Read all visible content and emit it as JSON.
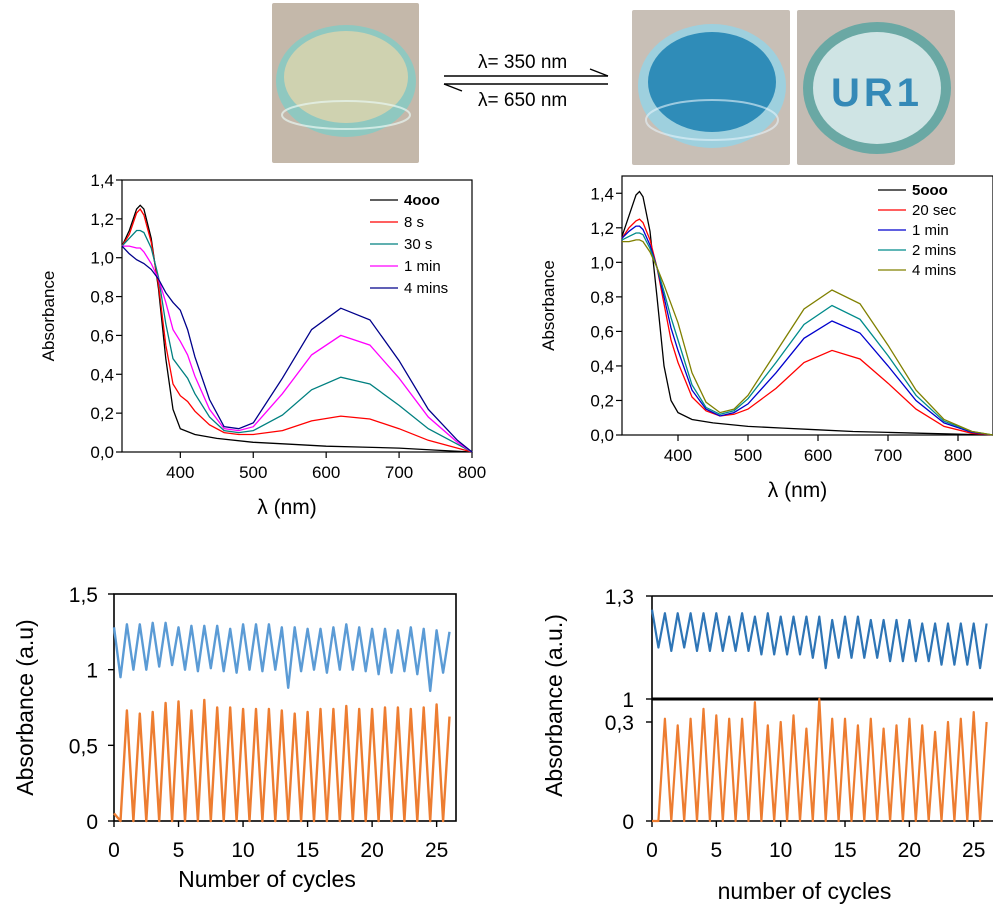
{
  "photos": [
    {
      "name": "colorless-solution-dish",
      "colors": {
        "background": "#c4b8aa",
        "liquid": "#cfd2b0",
        "rim": "#8fc8c0"
      }
    },
    {
      "name": "blue-solution-dish",
      "colors": {
        "background": "#c8bfb6",
        "liquid": "#2f8cb8",
        "rim": "#9ed0de"
      }
    },
    {
      "name": "ur1-pattern-dish",
      "colors": {
        "background": "#c3bbb3",
        "liquid": "#cfe4e4",
        "rim": "#6aa8a4"
      }
    }
  ],
  "pattern_text": "UR1",
  "photoswitch": {
    "forward_label": "λ= 350 nm",
    "backward_label": "λ= 650 nm"
  },
  "chart_data": [
    {
      "type": "line",
      "xlabel": "λ (nm)",
      "ylabel": "Absorbance",
      "xlim": [
        320,
        800
      ],
      "ylim": [
        0.0,
        1.4
      ],
      "xticks": [
        400,
        500,
        600,
        700,
        800
      ],
      "yticks": [
        "0,0",
        "0,2",
        "0,4",
        "0,6",
        "0,8",
        "1,0",
        "1,2",
        "1,4"
      ],
      "legend_position": "top-right",
      "series": [
        {
          "name": "4ooo",
          "color": "#000000",
          "bold": true,
          "x": [
            320,
            330,
            340,
            345,
            350,
            360,
            370,
            380,
            390,
            400,
            420,
            450,
            500,
            550,
            600,
            650,
            700,
            750,
            800
          ],
          "y": [
            1.06,
            1.14,
            1.25,
            1.27,
            1.25,
            1.1,
            0.84,
            0.48,
            0.22,
            0.12,
            0.09,
            0.07,
            0.05,
            0.04,
            0.03,
            0.025,
            0.02,
            0.01,
            0.0
          ]
        },
        {
          "name": "8 s",
          "color": "#ff0000",
          "x": [
            320,
            330,
            340,
            345,
            350,
            360,
            370,
            380,
            390,
            400,
            410,
            420,
            440,
            460,
            480,
            500,
            540,
            580,
            620,
            660,
            700,
            740,
            780,
            800
          ],
          "y": [
            1.06,
            1.12,
            1.23,
            1.25,
            1.22,
            1.08,
            0.86,
            0.55,
            0.35,
            0.29,
            0.26,
            0.21,
            0.14,
            0.1,
            0.09,
            0.09,
            0.11,
            0.16,
            0.185,
            0.17,
            0.12,
            0.06,
            0.02,
            0.0
          ]
        },
        {
          "name": "30 s",
          "color": "#008080",
          "x": [
            320,
            330,
            340,
            345,
            350,
            360,
            370,
            380,
            390,
            400,
            410,
            420,
            440,
            460,
            480,
            500,
            540,
            580,
            620,
            660,
            700,
            740,
            780,
            800
          ],
          "y": [
            1.06,
            1.1,
            1.14,
            1.14,
            1.13,
            1.05,
            0.9,
            0.66,
            0.48,
            0.43,
            0.38,
            0.3,
            0.18,
            0.11,
            0.1,
            0.11,
            0.19,
            0.32,
            0.385,
            0.35,
            0.24,
            0.12,
            0.04,
            0.0
          ]
        },
        {
          "name": "1 min",
          "color": "#ff00ff",
          "x": [
            320,
            330,
            340,
            345,
            350,
            360,
            370,
            380,
            390,
            400,
            410,
            420,
            440,
            460,
            480,
            500,
            540,
            580,
            620,
            660,
            700,
            740,
            780,
            800
          ],
          "y": [
            1.06,
            1.06,
            1.05,
            1.05,
            1.03,
            0.97,
            0.89,
            0.77,
            0.63,
            0.57,
            0.5,
            0.39,
            0.22,
            0.12,
            0.11,
            0.13,
            0.3,
            0.5,
            0.6,
            0.55,
            0.38,
            0.18,
            0.05,
            0.0
          ]
        },
        {
          "name": "4 mins",
          "color": "#00008b",
          "x": [
            320,
            330,
            340,
            350,
            360,
            370,
            380,
            390,
            400,
            410,
            420,
            440,
            460,
            480,
            500,
            540,
            580,
            620,
            660,
            700,
            740,
            780,
            800
          ],
          "y": [
            1.06,
            1.02,
            0.99,
            0.97,
            0.94,
            0.89,
            0.82,
            0.77,
            0.73,
            0.63,
            0.49,
            0.27,
            0.13,
            0.12,
            0.15,
            0.38,
            0.63,
            0.74,
            0.68,
            0.47,
            0.22,
            0.06,
            0.0
          ]
        }
      ]
    },
    {
      "type": "line",
      "xlabel": "λ (nm)",
      "ylabel": "Absorbance",
      "xlim": [
        320,
        850
      ],
      "ylim": [
        0.0,
        1.5
      ],
      "xticks": [
        400,
        500,
        600,
        700,
        800
      ],
      "yticks": [
        "0,0",
        "0,2",
        "0,4",
        "0,6",
        "0,8",
        "1,0",
        "1,2",
        "1,4"
      ],
      "legend_position": "top-right",
      "series": [
        {
          "name": "5ooo",
          "color": "#000000",
          "bold": true,
          "x": [
            320,
            330,
            340,
            345,
            350,
            360,
            370,
            380,
            390,
            400,
            420,
            450,
            500,
            550,
            600,
            650,
            700,
            750,
            800,
            850
          ],
          "y": [
            1.15,
            1.27,
            1.39,
            1.41,
            1.38,
            1.18,
            0.8,
            0.4,
            0.2,
            0.13,
            0.09,
            0.07,
            0.05,
            0.04,
            0.03,
            0.02,
            0.015,
            0.01,
            0.005,
            0.0
          ]
        },
        {
          "name": "20 sec",
          "color": "#ff0000",
          "x": [
            320,
            330,
            340,
            345,
            350,
            360,
            370,
            380,
            390,
            400,
            420,
            440,
            460,
            480,
            500,
            540,
            580,
            620,
            660,
            700,
            740,
            780,
            820,
            850
          ],
          "y": [
            1.14,
            1.2,
            1.24,
            1.25,
            1.23,
            1.13,
            0.97,
            0.76,
            0.55,
            0.42,
            0.22,
            0.14,
            0.11,
            0.12,
            0.15,
            0.27,
            0.42,
            0.49,
            0.44,
            0.3,
            0.15,
            0.05,
            0.01,
            0.0
          ]
        },
        {
          "name": "1 min",
          "color": "#0000cd",
          "x": [
            320,
            330,
            340,
            345,
            350,
            360,
            370,
            380,
            390,
            400,
            420,
            440,
            460,
            480,
            500,
            540,
            580,
            620,
            660,
            700,
            740,
            780,
            820,
            850
          ],
          "y": [
            1.14,
            1.18,
            1.21,
            1.21,
            1.19,
            1.1,
            0.97,
            0.8,
            0.62,
            0.49,
            0.26,
            0.15,
            0.11,
            0.13,
            0.18,
            0.36,
            0.56,
            0.66,
            0.59,
            0.4,
            0.2,
            0.07,
            0.015,
            0.0
          ]
        },
        {
          "name": "2 mins",
          "color": "#008b8b",
          "x": [
            320,
            330,
            340,
            345,
            350,
            360,
            370,
            380,
            390,
            400,
            420,
            440,
            460,
            480,
            500,
            540,
            580,
            620,
            660,
            700,
            740,
            780,
            820,
            850
          ],
          "y": [
            1.13,
            1.15,
            1.17,
            1.17,
            1.16,
            1.08,
            0.97,
            0.83,
            0.68,
            0.55,
            0.29,
            0.16,
            0.12,
            0.14,
            0.21,
            0.42,
            0.64,
            0.75,
            0.67,
            0.46,
            0.23,
            0.08,
            0.02,
            0.0
          ]
        },
        {
          "name": "4 mins",
          "color": "#808000",
          "x": [
            320,
            330,
            340,
            345,
            350,
            360,
            370,
            380,
            390,
            400,
            420,
            440,
            460,
            480,
            500,
            540,
            580,
            620,
            660,
            700,
            740,
            780,
            820,
            850
          ],
          "y": [
            1.12,
            1.12,
            1.13,
            1.13,
            1.12,
            1.06,
            0.97,
            0.87,
            0.76,
            0.65,
            0.36,
            0.19,
            0.13,
            0.15,
            0.23,
            0.48,
            0.73,
            0.84,
            0.76,
            0.52,
            0.26,
            0.09,
            0.02,
            0.0
          ]
        }
      ]
    },
    {
      "type": "line",
      "xlabel": "Number of cycles",
      "ylabel": "Absorbance (a.u)",
      "xlim": [
        0,
        26.5
      ],
      "ylim": [
        0,
        1.5
      ],
      "xticks": [
        0,
        5,
        10,
        15,
        20,
        25
      ],
      "yticks": [
        "0",
        "0,5",
        "1",
        "1,5"
      ],
      "series": [
        {
          "name": "",
          "color": "#5b9bd5",
          "peaks": [
            1.28,
            1.3,
            1.3,
            1.31,
            1.31,
            1.28,
            1.29,
            1.29,
            1.29,
            1.27,
            1.3,
            1.3,
            1.3,
            1.28,
            1.28,
            1.27,
            1.27,
            1.28,
            1.3,
            1.28,
            1.27,
            1.27,
            1.26,
            1.28,
            1.27,
            1.26,
            1.25
          ],
          "valleys": [
            0.95,
            1.0,
            1.0,
            1.02,
            1.03,
            1.0,
            0.99,
            1.01,
            0.99,
            0.98,
            1.0,
            0.99,
            1.0,
            0.88,
            0.99,
            1.0,
            0.98,
            1.0,
            1.0,
            0.99,
            0.97,
            0.98,
            0.99,
            0.97,
            0.86,
            0.98
          ]
        },
        {
          "name": "",
          "color": "#ed7d31",
          "peaks": [
            0.05,
            0.73,
            0.71,
            0.72,
            0.78,
            0.79,
            0.73,
            0.8,
            0.75,
            0.75,
            0.74,
            0.74,
            0.74,
            0.73,
            0.71,
            0.72,
            0.74,
            0.74,
            0.76,
            0.74,
            0.74,
            0.75,
            0.75,
            0.74,
            0.75,
            0.77,
            0.69
          ],
          "valleys": [
            0,
            0,
            0,
            0,
            0,
            0,
            0,
            0,
            0,
            0,
            0,
            0,
            0,
            0,
            0,
            0,
            0,
            0,
            0,
            0,
            0,
            0,
            0,
            0,
            0,
            0
          ]
        }
      ]
    },
    {
      "type": "line",
      "xlabel": "number of cycles",
      "ylabel": "Absorbance (a.u.)",
      "xlim": [
        0,
        26.5
      ],
      "ylim": [
        0,
        1.3
      ],
      "axis_break_between": [
        0.3,
        1
      ],
      "xticks": [
        0,
        5,
        10,
        15,
        20,
        25
      ],
      "yticks": [
        "0",
        "0,3",
        "1",
        "1,3"
      ],
      "series": [
        {
          "name": "",
          "color": "#2e75b6",
          "peaks": [
            1.26,
            1.25,
            1.25,
            1.25,
            1.25,
            1.25,
            1.24,
            1.25,
            1.24,
            1.25,
            1.24,
            1.24,
            1.24,
            1.24,
            1.23,
            1.24,
            1.24,
            1.23,
            1.23,
            1.23,
            1.23,
            1.22,
            1.22,
            1.22,
            1.22,
            1.22,
            1.22
          ],
          "valleys": [
            1.15,
            1.14,
            1.15,
            1.14,
            1.14,
            1.14,
            1.14,
            1.14,
            1.13,
            1.13,
            1.13,
            1.13,
            1.12,
            1.09,
            1.12,
            1.12,
            1.12,
            1.12,
            1.11,
            1.11,
            1.11,
            1.11,
            1.1,
            1.1,
            1.1,
            1.09
          ]
        },
        {
          "name": "",
          "color": "#ed7d31",
          "peaks": [
            0.0,
            0.31,
            0.29,
            0.31,
            0.34,
            0.32,
            0.31,
            0.31,
            0.36,
            0.29,
            0.3,
            0.32,
            0.28,
            0.37,
            0.31,
            0.31,
            0.29,
            0.31,
            0.28,
            0.29,
            0.31,
            0.29,
            0.27,
            0.3,
            0.31,
            0.33,
            0.3
          ],
          "valleys": [
            0,
            0,
            0,
            0,
            0,
            0,
            0,
            0,
            0,
            0,
            0,
            0,
            0,
            0,
            0,
            0,
            0,
            0,
            0,
            0,
            0,
            0,
            0,
            0,
            0,
            0
          ]
        }
      ]
    }
  ]
}
